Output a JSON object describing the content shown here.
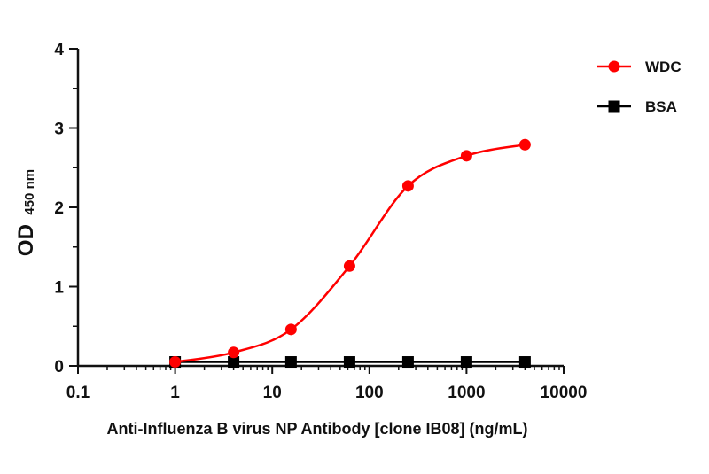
{
  "chart_data": {
    "type": "line",
    "x_scale": "log",
    "xlim": [
      0.1,
      10000
    ],
    "ylim": [
      0,
      4
    ],
    "x_ticks": [
      "0.1",
      "1",
      "10",
      "100",
      "1000",
      "10000"
    ],
    "y_ticks": [
      "0",
      "1",
      "2",
      "3",
      "4"
    ],
    "xlabel": "Anti-Influenza B virus NP Antibody [clone IB08]  (ng/mL)",
    "ylabel": "OD",
    "ylabel_sub": "450 nm",
    "legend_position": "top-right",
    "grid": false,
    "series": [
      {
        "name": "WDC",
        "color": "#ff0000",
        "marker": "circle",
        "smooth": true,
        "x": [
          1,
          4,
          15.6,
          62.5,
          250,
          1000,
          4000
        ],
        "y": [
          0.05,
          0.17,
          0.46,
          1.26,
          2.27,
          2.65,
          2.79
        ]
      },
      {
        "name": "BSA",
        "color": "#000000",
        "marker": "square",
        "smooth": false,
        "x": [
          1,
          4,
          15.6,
          62.5,
          250,
          1000,
          4000
        ],
        "y": [
          0.05,
          0.05,
          0.05,
          0.05,
          0.05,
          0.05,
          0.05
        ]
      }
    ]
  }
}
